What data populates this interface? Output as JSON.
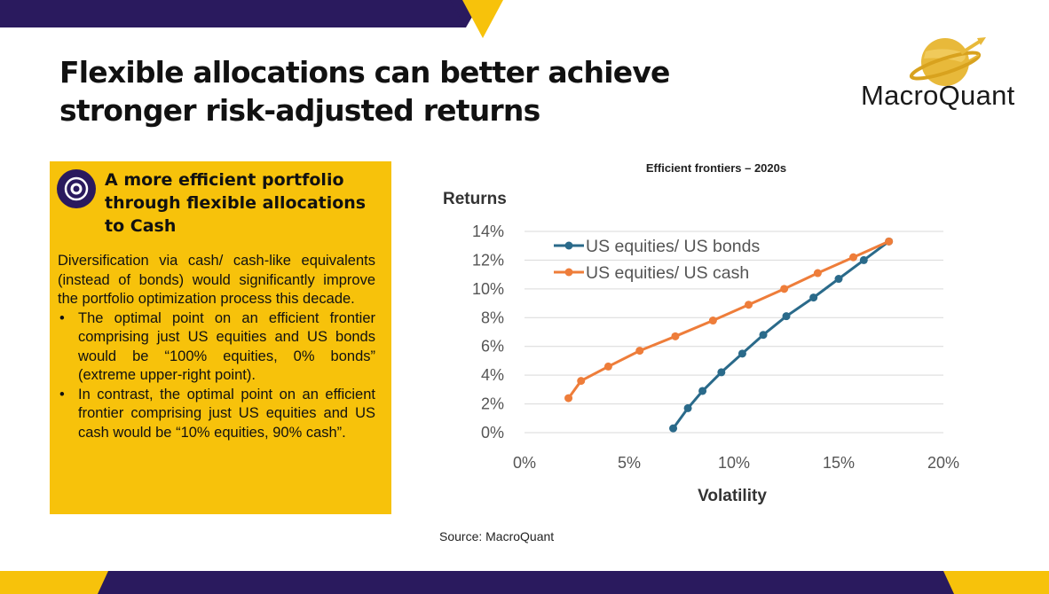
{
  "slide": {
    "title": "Flexible allocations can better achieve stronger risk-adjusted returns",
    "logo_text": "MacroQuant",
    "source": "Source: MacroQuant",
    "colors": {
      "navy": "#2a1a5e",
      "yellow": "#f7c20b"
    }
  },
  "panel": {
    "heading": "A more efficient portfolio through flexible allocations to Cash",
    "intro": "Diversification via cash/ cash-like equivalents (instead of bonds) would significantly improve  the portfolio optimization process this decade.",
    "bullets": [
      "The optimal point on an efficient frontier comprising just US equities and US bonds would be “100% equities, 0% bonds” (extreme upper-right point).",
      "In contrast, the optimal point on an efficient frontier comprising just US equities and US cash would be “10% equities, 90% cash”."
    ],
    "icon": "target-icon"
  },
  "chart_data": {
    "type": "line",
    "title": "Efficient frontiers – 2020s",
    "xlabel": "Volatility",
    "ylabel": "Returns",
    "xlim": [
      0,
      20
    ],
    "ylim": [
      0,
      14
    ],
    "x_ticks": [
      "0%",
      "5%",
      "10%",
      "15%",
      "20%"
    ],
    "y_ticks": [
      "0%",
      "2%",
      "4%",
      "6%",
      "8%",
      "10%",
      "12%",
      "14%"
    ],
    "grid": true,
    "legend": "top-left",
    "series": [
      {
        "name": "US equities/ US bonds",
        "color": "#2a6a8a",
        "points": [
          [
            7.1,
            0.3
          ],
          [
            7.8,
            1.7
          ],
          [
            8.5,
            2.9
          ],
          [
            9.4,
            4.2
          ],
          [
            10.4,
            5.5
          ],
          [
            11.4,
            6.8
          ],
          [
            12.5,
            8.1
          ],
          [
            13.8,
            9.4
          ],
          [
            15.0,
            10.7
          ],
          [
            16.2,
            12.0
          ],
          [
            17.4,
            13.3
          ]
        ]
      },
      {
        "name": "US equities/ US cash",
        "color": "#ee7d3a",
        "points": [
          [
            2.1,
            2.4
          ],
          [
            2.7,
            3.6
          ],
          [
            4.0,
            4.6
          ],
          [
            5.5,
            5.7
          ],
          [
            7.2,
            6.7
          ],
          [
            9.0,
            7.8
          ],
          [
            10.7,
            8.9
          ],
          [
            12.4,
            10.0
          ],
          [
            14.0,
            11.1
          ],
          [
            15.7,
            12.2
          ],
          [
            17.4,
            13.3
          ]
        ]
      }
    ]
  }
}
